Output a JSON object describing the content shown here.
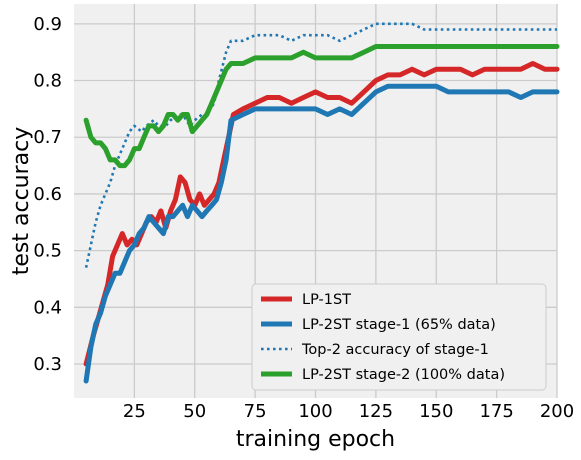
{
  "chart_data": {
    "type": "line",
    "xlabel": "training epoch",
    "ylabel": "test accuracy",
    "xlim": [
      0,
      200
    ],
    "ylim": [
      0.24,
      0.935
    ],
    "xticks": [
      25,
      50,
      75,
      100,
      125,
      150,
      175,
      200
    ],
    "yticks": [
      0.3,
      0.4,
      0.5,
      0.6,
      0.7,
      0.8,
      0.9
    ],
    "grid": true,
    "legend_position": "lower right",
    "series": [
      {
        "name": "LP-1ST",
        "color": "#d62728",
        "style": "solid",
        "x": [
          5,
          8,
          10,
          12,
          14,
          16,
          18,
          20,
          22,
          24,
          26,
          28,
          30,
          32,
          34,
          36,
          38,
          40,
          42,
          44,
          46,
          48,
          50,
          52,
          54,
          56,
          58,
          60,
          62,
          64,
          66,
          70,
          75,
          80,
          85,
          90,
          95,
          100,
          105,
          110,
          115,
          120,
          125,
          130,
          135,
          140,
          145,
          150,
          155,
          160,
          165,
          170,
          175,
          180,
          185,
          190,
          195,
          200
        ],
        "values": [
          0.3,
          0.35,
          0.38,
          0.41,
          0.44,
          0.49,
          0.51,
          0.53,
          0.51,
          0.52,
          0.51,
          0.53,
          0.55,
          0.56,
          0.55,
          0.57,
          0.54,
          0.57,
          0.59,
          0.63,
          0.62,
          0.59,
          0.58,
          0.6,
          0.58,
          0.59,
          0.6,
          0.62,
          0.66,
          0.7,
          0.74,
          0.75,
          0.76,
          0.77,
          0.77,
          0.76,
          0.77,
          0.78,
          0.77,
          0.77,
          0.76,
          0.78,
          0.8,
          0.81,
          0.81,
          0.82,
          0.81,
          0.82,
          0.82,
          0.82,
          0.81,
          0.82,
          0.82,
          0.82,
          0.82,
          0.83,
          0.82,
          0.82
        ]
      },
      {
        "name": "LP-2ST stage-1 (65% data)",
        "color": "#1f77b4",
        "style": "solid",
        "x": [
          5,
          7,
          9,
          11,
          13,
          15,
          17,
          19,
          21,
          23,
          25,
          27,
          29,
          31,
          33,
          35,
          37,
          39,
          41,
          43,
          45,
          47,
          49,
          51,
          53,
          55,
          57,
          59,
          61,
          63,
          65,
          70,
          75,
          80,
          85,
          90,
          95,
          100,
          105,
          110,
          115,
          120,
          125,
          130,
          135,
          140,
          145,
          150,
          155,
          160,
          165,
          170,
          175,
          180,
          185,
          190,
          195,
          200
        ],
        "values": [
          0.27,
          0.33,
          0.37,
          0.39,
          0.42,
          0.44,
          0.46,
          0.46,
          0.48,
          0.5,
          0.51,
          0.53,
          0.54,
          0.56,
          0.55,
          0.54,
          0.53,
          0.56,
          0.56,
          0.57,
          0.58,
          0.56,
          0.58,
          0.57,
          0.56,
          0.57,
          0.58,
          0.59,
          0.62,
          0.66,
          0.73,
          0.74,
          0.75,
          0.75,
          0.75,
          0.75,
          0.75,
          0.75,
          0.74,
          0.75,
          0.74,
          0.76,
          0.78,
          0.79,
          0.79,
          0.79,
          0.79,
          0.79,
          0.78,
          0.78,
          0.78,
          0.78,
          0.78,
          0.78,
          0.77,
          0.78,
          0.78,
          0.78
        ]
      },
      {
        "name": "Top-2 accuracy of stage-1",
        "color": "#1f77b4",
        "style": "dotted",
        "x": [
          5,
          7,
          9,
          11,
          13,
          15,
          17,
          20,
          23,
          25,
          28,
          30,
          33,
          35,
          38,
          40,
          43,
          45,
          48,
          50,
          53,
          55,
          58,
          60,
          63,
          65,
          70,
          75,
          80,
          85,
          90,
          95,
          100,
          105,
          110,
          115,
          120,
          125,
          130,
          135,
          140,
          145,
          150,
          155,
          160,
          165,
          170,
          175,
          180,
          185,
          190,
          195,
          200
        ],
        "values": [
          0.47,
          0.51,
          0.55,
          0.58,
          0.6,
          0.62,
          0.65,
          0.68,
          0.71,
          0.72,
          0.71,
          0.72,
          0.73,
          0.72,
          0.72,
          0.73,
          0.74,
          0.74,
          0.72,
          0.73,
          0.74,
          0.74,
          0.76,
          0.8,
          0.85,
          0.87,
          0.87,
          0.88,
          0.88,
          0.88,
          0.87,
          0.88,
          0.88,
          0.88,
          0.87,
          0.88,
          0.89,
          0.9,
          0.9,
          0.9,
          0.9,
          0.89,
          0.89,
          0.89,
          0.89,
          0.89,
          0.89,
          0.89,
          0.89,
          0.89,
          0.89,
          0.89,
          0.89
        ]
      },
      {
        "name": "LP-2ST stage-2 (100% data)",
        "color": "#2ca02c",
        "style": "solid",
        "x": [
          5,
          7,
          9,
          11,
          13,
          15,
          17,
          19,
          21,
          23,
          25,
          27,
          29,
          31,
          33,
          35,
          37,
          39,
          41,
          43,
          45,
          47,
          49,
          51,
          53,
          55,
          57,
          59,
          61,
          63,
          65,
          70,
          75,
          80,
          85,
          90,
          95,
          100,
          105,
          110,
          115,
          120,
          125,
          130,
          135,
          140,
          145,
          150,
          155,
          160,
          165,
          170,
          175,
          180,
          185,
          190,
          195,
          200
        ],
        "values": [
          0.73,
          0.7,
          0.69,
          0.69,
          0.68,
          0.66,
          0.66,
          0.65,
          0.65,
          0.66,
          0.68,
          0.68,
          0.7,
          0.72,
          0.72,
          0.71,
          0.72,
          0.74,
          0.74,
          0.73,
          0.74,
          0.74,
          0.71,
          0.72,
          0.73,
          0.74,
          0.76,
          0.78,
          0.8,
          0.82,
          0.83,
          0.83,
          0.84,
          0.84,
          0.84,
          0.84,
          0.85,
          0.84,
          0.84,
          0.84,
          0.84,
          0.85,
          0.86,
          0.86,
          0.86,
          0.86,
          0.86,
          0.86,
          0.86,
          0.86,
          0.86,
          0.86,
          0.86,
          0.86,
          0.86,
          0.86,
          0.86,
          0.86
        ]
      }
    ]
  }
}
